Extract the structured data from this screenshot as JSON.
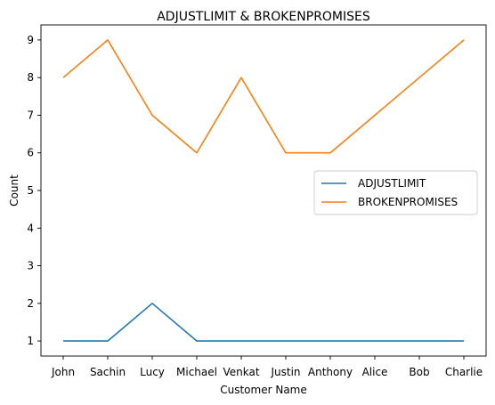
{
  "chart_data": {
    "type": "line",
    "title": "ADJUSTLIMIT & BROKENPROMISES",
    "xlabel": "Customer Name",
    "ylabel": "Count",
    "categories": [
      "John",
      "Sachin",
      "Lucy",
      "Michael",
      "Venkat",
      "Justin",
      "Anthony",
      "Alice",
      "Bob",
      "Charlie"
    ],
    "series": [
      {
        "name": "ADJUSTLIMIT",
        "color": "#1f77b4",
        "values": [
          1,
          1,
          2,
          1,
          1,
          1,
          1,
          1,
          1,
          1
        ]
      },
      {
        "name": "BROKENPROMISES",
        "color": "#ff7f0e",
        "values": [
          8,
          9,
          7,
          6,
          8,
          6,
          6,
          7,
          8,
          9
        ]
      }
    ],
    "yticks": [
      1,
      2,
      3,
      4,
      5,
      6,
      7,
      8,
      9
    ],
    "ylim": [
      0.6,
      9.4
    ],
    "grid": false,
    "legend_position": "center-right"
  }
}
